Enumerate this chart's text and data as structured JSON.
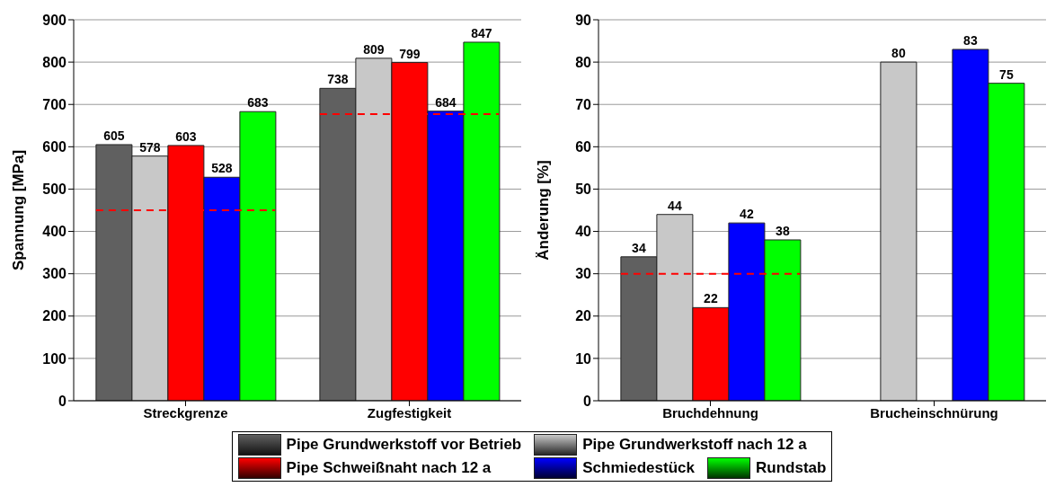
{
  "chart_data": [
    {
      "type": "bar",
      "ylabel": "Spannung [MPa]",
      "categories": [
        "Streckgrenze",
        "Zugfestigkeit"
      ],
      "ylim": [
        0,
        900
      ],
      "yticks": [
        0,
        100,
        200,
        300,
        400,
        500,
        600,
        700,
        800,
        900
      ],
      "grid": "y",
      "data_labels": true,
      "legend": "bottom",
      "series": [
        {
          "name": "Pipe Grundwerkstoff vor Betrieb",
          "color": "#606060",
          "values": [
            605,
            738
          ]
        },
        {
          "name": "Pipe Grundwerkstoff nach 12 a",
          "color": "#c8c8c8",
          "values": [
            578,
            809
          ]
        },
        {
          "name": "Pipe Schweißnaht nach 12 a",
          "color": "#ff0000",
          "values": [
            603,
            799
          ]
        },
        {
          "name": "Schmiedestück",
          "color": "#0000ff",
          "values": [
            528,
            684
          ]
        },
        {
          "name": "Rundstab",
          "color": "#00ff00",
          "values": [
            683,
            847
          ]
        }
      ],
      "ref_lines": [
        {
          "axis": "y",
          "value": 450,
          "color": "#ff0000",
          "line_style": "dashed"
        },
        {
          "axis": "y",
          "value": 677,
          "color": "#ff0000",
          "line_style": "dashed"
        }
      ]
    },
    {
      "type": "bar",
      "ylabel": "Änderung [%]",
      "categories": [
        "Bruchdehnung",
        "Brucheinschnürung"
      ],
      "ylim": [
        0,
        90
      ],
      "yticks": [
        0,
        10,
        20,
        30,
        40,
        50,
        60,
        70,
        80,
        90
      ],
      "grid": "y",
      "data_labels": true,
      "series": [
        {
          "color": "#606060",
          "values": [
            34,
            null
          ]
        },
        {
          "color": "#c8c8c8",
          "values": [
            44,
            80
          ]
        },
        {
          "color": "#ff0000",
          "values": [
            22,
            null
          ]
        },
        {
          "color": "#0000ff",
          "values": [
            42,
            83
          ]
        },
        {
          "color": "#00ff00",
          "values": [
            38,
            75
          ]
        }
      ],
      "ref_lines": [
        {
          "axis": "y",
          "value": 30,
          "color": "#ff0000",
          "line_style": "dashed"
        }
      ]
    }
  ]
}
